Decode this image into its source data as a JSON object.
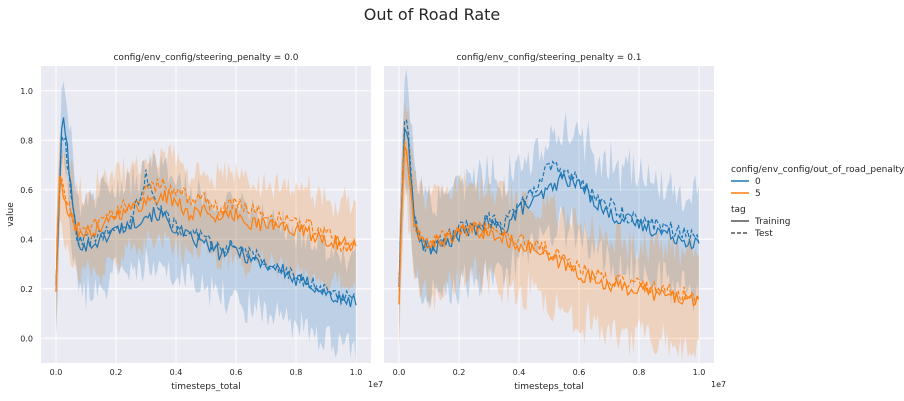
{
  "chart_data": {
    "type": "line",
    "title": "Out of Road Rate",
    "xlabel": "timesteps_total",
    "ylabel": "value",
    "x_scale_label": "1e7",
    "xlim": [
      -0.05,
      1.05
    ],
    "ylim": [
      -0.1,
      1.1
    ],
    "xticks": [
      0.0,
      0.2,
      0.4,
      0.6,
      0.8,
      1.0
    ],
    "xtick_labels": [
      "0.0",
      "0.2",
      "0.4",
      "0.6",
      "0.8",
      "1.0"
    ],
    "yticks": [
      0.0,
      0.2,
      0.4,
      0.6,
      0.8,
      1.0
    ],
    "ytick_labels": [
      "0.0",
      "0.2",
      "0.4",
      "0.6",
      "0.8",
      "1.0"
    ],
    "grid": true,
    "legend": {
      "position": "right",
      "hue_title": "config/env_config/out_of_road_penalty",
      "hue_entries": [
        "0",
        "5"
      ],
      "style_title": "tag",
      "style_entries": [
        "Training",
        "Test"
      ]
    },
    "colors": {
      "0": "#1f77b4",
      "5": "#ff7f0e"
    },
    "panels": [
      {
        "title": "config/env_config/steering_penalty = 0.0",
        "x": [
          0.0,
          0.01,
          0.02,
          0.03,
          0.05,
          0.07,
          0.1,
          0.15,
          0.2,
          0.25,
          0.3,
          0.35,
          0.4,
          0.45,
          0.5,
          0.55,
          0.6,
          0.65,
          0.7,
          0.75,
          0.8,
          0.85,
          0.9,
          0.95,
          1.0
        ],
        "series": [
          {
            "name": "0",
            "tag": "Training",
            "values": [
              0.23,
              0.5,
              0.9,
              0.86,
              0.6,
              0.4,
              0.37,
              0.4,
              0.44,
              0.46,
              0.5,
              0.5,
              0.44,
              0.4,
              0.38,
              0.34,
              0.36,
              0.32,
              0.3,
              0.28,
              0.23,
              0.22,
              0.18,
              0.15,
              0.15
            ],
            "band": [
              0.12,
              0.25
            ]
          },
          {
            "name": "0",
            "tag": "Test",
            "values": [
              0.23,
              0.55,
              0.85,
              0.8,
              0.58,
              0.4,
              0.39,
              0.42,
              0.44,
              0.47,
              0.66,
              0.52,
              0.45,
              0.42,
              0.4,
              0.36,
              0.38,
              0.34,
              0.31,
              0.29,
              0.25,
              0.23,
              0.2,
              0.17,
              0.16
            ]
          },
          {
            "name": "5",
            "tag": "Training",
            "values": [
              0.2,
              0.65,
              0.6,
              0.55,
              0.48,
              0.44,
              0.42,
              0.46,
              0.5,
              0.52,
              0.55,
              0.58,
              0.55,
              0.5,
              0.52,
              0.48,
              0.5,
              0.47,
              0.46,
              0.45,
              0.44,
              0.42,
              0.4,
              0.38,
              0.38
            ],
            "band": [
              0.12,
              0.22
            ]
          },
          {
            "name": "5",
            "tag": "Test",
            "values": [
              0.2,
              0.62,
              0.62,
              0.58,
              0.5,
              0.45,
              0.44,
              0.48,
              0.52,
              0.54,
              0.6,
              0.62,
              0.6,
              0.56,
              0.56,
              0.52,
              0.55,
              0.52,
              0.5,
              0.48,
              0.47,
              0.45,
              0.43,
              0.38,
              0.36
            ]
          }
        ]
      },
      {
        "title": "config/env_config/steering_penalty = 0.1",
        "x": [
          0.0,
          0.01,
          0.02,
          0.03,
          0.05,
          0.07,
          0.1,
          0.15,
          0.2,
          0.25,
          0.3,
          0.35,
          0.4,
          0.45,
          0.5,
          0.55,
          0.6,
          0.65,
          0.7,
          0.75,
          0.8,
          0.85,
          0.9,
          0.95,
          1.0
        ],
        "series": [
          {
            "name": "0",
            "tag": "Training",
            "values": [
              0.22,
              0.55,
              0.92,
              0.8,
              0.5,
              0.38,
              0.36,
              0.38,
              0.42,
              0.44,
              0.46,
              0.44,
              0.52,
              0.55,
              0.6,
              0.65,
              0.62,
              0.56,
              0.5,
              0.48,
              0.46,
              0.44,
              0.42,
              0.4,
              0.38
            ],
            "band": [
              0.12,
              0.28
            ]
          },
          {
            "name": "0",
            "tag": "Test",
            "values": [
              0.22,
              0.6,
              0.94,
              0.84,
              0.52,
              0.38,
              0.37,
              0.4,
              0.44,
              0.46,
              0.48,
              0.46,
              0.55,
              0.6,
              0.7,
              0.66,
              0.64,
              0.58,
              0.54,
              0.5,
              0.48,
              0.46,
              0.45,
              0.42,
              0.4
            ]
          },
          {
            "name": "5",
            "tag": "Training",
            "values": [
              0.15,
              0.55,
              0.8,
              0.7,
              0.45,
              0.4,
              0.38,
              0.4,
              0.42,
              0.44,
              0.42,
              0.4,
              0.38,
              0.36,
              0.32,
              0.3,
              0.26,
              0.24,
              0.22,
              0.2,
              0.2,
              0.18,
              0.17,
              0.16,
              0.15
            ],
            "band": [
              0.12,
              0.26
            ]
          },
          {
            "name": "5",
            "tag": "Test",
            "values": [
              0.15,
              0.58,
              0.82,
              0.72,
              0.47,
              0.41,
              0.4,
              0.42,
              0.44,
              0.46,
              0.44,
              0.42,
              0.4,
              0.38,
              0.36,
              0.32,
              0.28,
              0.26,
              0.24,
              0.23,
              0.22,
              0.2,
              0.19,
              0.18,
              0.16
            ]
          }
        ]
      }
    ]
  }
}
